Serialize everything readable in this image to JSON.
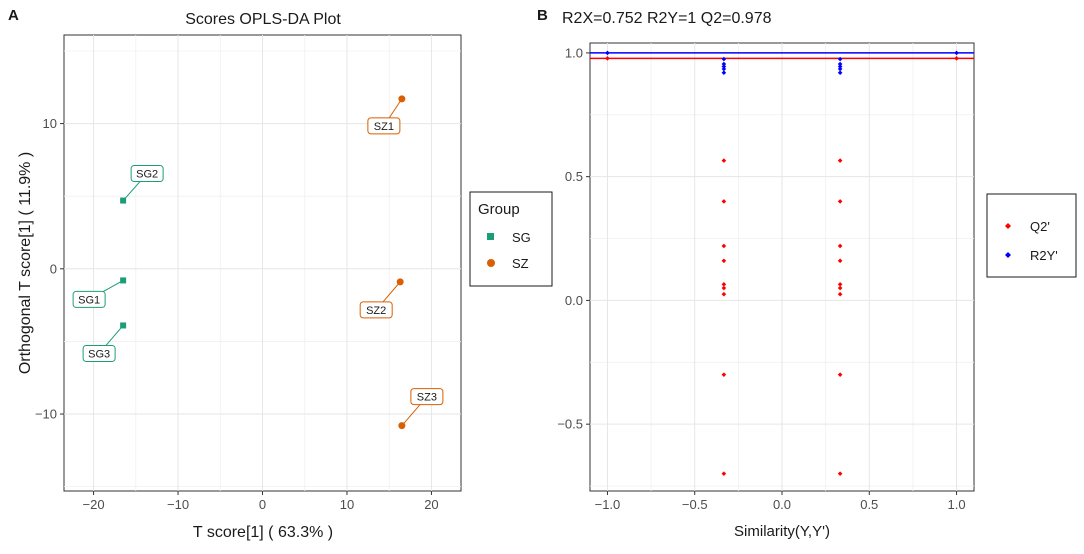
{
  "chart_data": [
    {
      "panel_label": "A",
      "type": "scatter",
      "title": "Scores OPLS-DA Plot",
      "xlabel": "T score[1] ( 63.3% )",
      "ylabel": "Orthogonal T score[1] ( 11.9% )",
      "xlim": [
        -23.5,
        23.5
      ],
      "ylim": [
        -15.3,
        16.1
      ],
      "xticks": [
        -20,
        -10,
        0,
        10,
        20
      ],
      "yticks": [
        -10,
        0,
        10
      ],
      "grid": true,
      "legend": {
        "title": "Group",
        "position": "right",
        "entries": [
          {
            "label": "SG",
            "shape": "square",
            "color": "#1b9e77"
          },
          {
            "label": "SZ",
            "shape": "circle",
            "color": "#d95f02"
          }
        ]
      },
      "points": [
        {
          "label": "SZ1",
          "group": "SZ",
          "x": 16.5,
          "y": 11.7
        },
        {
          "label": "SG2",
          "group": "SG",
          "x": -16.5,
          "y": 4.7
        },
        {
          "label": "SG1",
          "group": "SG",
          "x": -16.5,
          "y": -0.8
        },
        {
          "label": "SZ2",
          "group": "SZ",
          "x": 16.3,
          "y": -0.9
        },
        {
          "label": "SG3",
          "group": "SG",
          "x": -16.5,
          "y": -3.9
        },
        {
          "label": "SZ3",
          "group": "SZ",
          "x": 16.5,
          "y": -10.8
        }
      ]
    },
    {
      "panel_label": "B",
      "type": "scatter",
      "title": "R2X=0.752   R2Y=1   Q2=0.978",
      "xlabel": "Similarity(Y,Y')",
      "ylabel": "",
      "xlim": [
        -1.1,
        1.1
      ],
      "ylim": [
        -0.77,
        1.04
      ],
      "xticks": [
        -1.0,
        -0.5,
        0.0,
        0.5,
        1.0
      ],
      "yticks": [
        -0.5,
        0.0,
        0.5,
        1.0
      ],
      "grid": true,
      "legend": {
        "title": "",
        "position": "right",
        "entries": [
          {
            "label": "Q2'",
            "shape": "diamond",
            "color": "#ff0000"
          },
          {
            "label": "R2Y'",
            "shape": "diamond",
            "color": "#0000ff"
          }
        ]
      },
      "lines": [
        {
          "series": "R2Y'",
          "y": 1.0,
          "color": "#0000ff"
        },
        {
          "series": "Q2'",
          "y": 0.978,
          "color": "#ff0000"
        }
      ],
      "series": [
        {
          "name": "R2Y'",
          "color": "#0000ff",
          "points": [
            {
              "x": -1.0,
              "y": 1.0
            },
            {
              "x": 1.0,
              "y": 1.0
            },
            {
              "x": -0.333,
              "y": 0.975
            },
            {
              "x": -0.333,
              "y": 0.955
            },
            {
              "x": -0.333,
              "y": 0.945
            },
            {
              "x": -0.333,
              "y": 0.935
            },
            {
              "x": -0.333,
              "y": 0.92
            },
            {
              "x": 0.333,
              "y": 0.975
            },
            {
              "x": 0.333,
              "y": 0.955
            },
            {
              "x": 0.333,
              "y": 0.945
            },
            {
              "x": 0.333,
              "y": 0.935
            },
            {
              "x": 0.333,
              "y": 0.92
            }
          ]
        },
        {
          "name": "Q2'",
          "color": "#ff0000",
          "points": [
            {
              "x": -1.0,
              "y": 0.978
            },
            {
              "x": 1.0,
              "y": 0.978
            },
            {
              "x": -0.333,
              "y": 0.565
            },
            {
              "x": -0.333,
              "y": 0.4
            },
            {
              "x": -0.333,
              "y": 0.22
            },
            {
              "x": -0.333,
              "y": 0.16
            },
            {
              "x": -0.333,
              "y": 0.065
            },
            {
              "x": -0.333,
              "y": 0.05
            },
            {
              "x": -0.333,
              "y": 0.025
            },
            {
              "x": -0.333,
              "y": -0.3
            },
            {
              "x": -0.333,
              "y": -0.7
            },
            {
              "x": 0.333,
              "y": 0.565
            },
            {
              "x": 0.333,
              "y": 0.4
            },
            {
              "x": 0.333,
              "y": 0.22
            },
            {
              "x": 0.333,
              "y": 0.16
            },
            {
              "x": 0.333,
              "y": 0.065
            },
            {
              "x": 0.333,
              "y": 0.05
            },
            {
              "x": 0.333,
              "y": 0.025
            },
            {
              "x": 0.333,
              "y": -0.3
            },
            {
              "x": 0.333,
              "y": -0.7
            }
          ]
        }
      ]
    }
  ]
}
